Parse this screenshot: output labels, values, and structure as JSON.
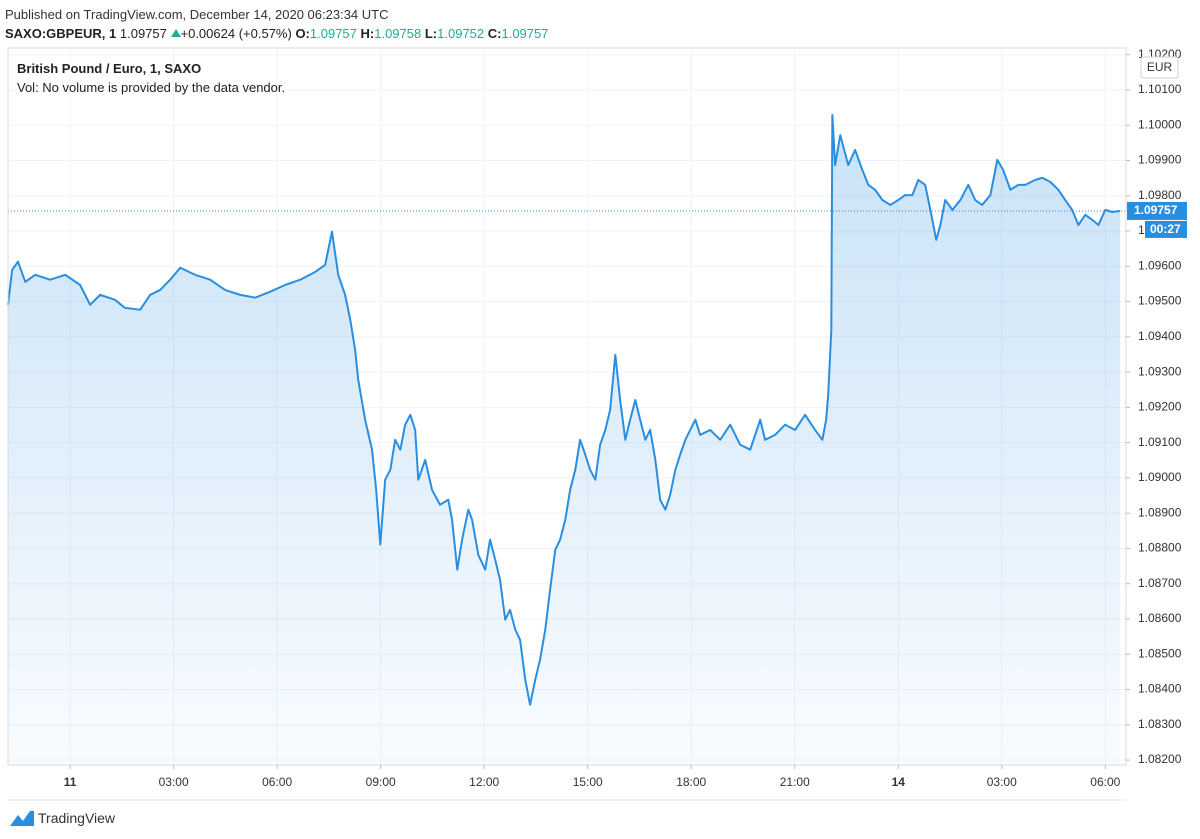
{
  "header": {
    "published": "Published on TradingView.com, December 14, 2020 06:23:34 UTC",
    "symbol": "SAXO:GBPEUR, 1",
    "last": "1.09757",
    "change": "+0.00624 (+0.57%)",
    "open_label": "O:",
    "open": "1.09757",
    "high_label": "H:",
    "high": "1.09758",
    "low_label": "L:",
    "low": "1.09752",
    "close_label": "C:",
    "close": "1.09757"
  },
  "footer": {
    "brand": "TradingView"
  },
  "chart_data": {
    "type": "area",
    "title": "British Pound / Euro, 1, SAXO",
    "subtitle": "Vol: No volume is provided by the data vendor.",
    "currency": "EUR",
    "countdown": "00:27",
    "color": "#2a8ee0",
    "grid": true,
    "x": [
      -1.8,
      -1.68,
      -1.51,
      -1.3,
      -1.01,
      -0.58,
      -0.14,
      0.29,
      0.58,
      0.87,
      1.3,
      1.59,
      2.03,
      2.32,
      2.61,
      2.9,
      3.19,
      3.62,
      4.06,
      4.49,
      4.93,
      5.36,
      5.8,
      6.23,
      6.67,
      7.1,
      7.39,
      7.59,
      7.77,
      7.97,
      8.12,
      8.26,
      8.35,
      8.55,
      8.75,
      8.87,
      8.99,
      9.13,
      9.28,
      9.42,
      9.57,
      9.71,
      9.86,
      10.0,
      10.09,
      10.29,
      10.49,
      10.72,
      10.96,
      11.07,
      11.22,
      11.36,
      11.54,
      11.65,
      11.83,
      12.03,
      12.17,
      12.32,
      12.46,
      12.61,
      12.75,
      12.9,
      13.04,
      13.19,
      13.33,
      13.48,
      13.62,
      13.77,
      13.91,
      14.06,
      14.2,
      14.35,
      14.49,
      14.64,
      14.78,
      14.93,
      15.07,
      15.22,
      15.36,
      15.51,
      15.65,
      15.8,
      15.94,
      16.09,
      16.23,
      16.38,
      16.52,
      16.67,
      16.81,
      16.96,
      17.1,
      17.25,
      17.39,
      17.54,
      17.68,
      17.83,
      17.97,
      18.12,
      18.26,
      18.55,
      18.84,
      19.13,
      19.42,
      19.71,
      20.0,
      20.14,
      20.43,
      20.72,
      21.01,
      21.3,
      21.59,
      21.8,
      21.91,
      21.97,
      22.06,
      22.09,
      22.17,
      22.32,
      22.55,
      22.75,
      22.96,
      23.13,
      23.33,
      23.54,
      23.77,
      24.0,
      24.2,
      24.41,
      24.58,
      24.78,
      24.93,
      25.1,
      25.22,
      25.36,
      25.57,
      25.8,
      26.03,
      26.23,
      26.43,
      26.67,
      26.87,
      27.04,
      27.25,
      27.48,
      27.68,
      27.97,
      28.17,
      28.41,
      28.64,
      28.84,
      29.04,
      29.22,
      29.42,
      29.62,
      29.8,
      30.0,
      30.2,
      30.43
    ],
    "values": [
      1.09491,
      1.0959,
      1.09613,
      1.09556,
      1.09576,
      1.09562,
      1.09576,
      1.09547,
      1.09491,
      1.09519,
      1.09505,
      1.09482,
      1.09477,
      1.09519,
      1.09533,
      1.09562,
      1.09596,
      1.09576,
      1.09562,
      1.09533,
      1.09519,
      1.09511,
      1.09528,
      1.09547,
      1.09562,
      1.09584,
      1.09604,
      1.09698,
      1.09576,
      1.09519,
      1.09448,
      1.09363,
      1.09278,
      1.09165,
      1.0908,
      1.08966,
      1.08811,
      1.08995,
      1.09023,
      1.09108,
      1.0908,
      1.09151,
      1.09179,
      1.09136,
      1.08995,
      1.09051,
      1.08966,
      1.08924,
      1.08938,
      1.08881,
      1.0874,
      1.08825,
      1.0891,
      1.08881,
      1.08782,
      1.0874,
      1.08825,
      1.08768,
      1.08711,
      1.08598,
      1.08626,
      1.0857,
      1.08541,
      1.08428,
      1.08357,
      1.08428,
      1.08485,
      1.0857,
      1.08683,
      1.08796,
      1.08825,
      1.08881,
      1.08966,
      1.09023,
      1.09108,
      1.09066,
      1.09023,
      1.08995,
      1.09094,
      1.09136,
      1.09193,
      1.09349,
      1.09221,
      1.09108,
      1.09165,
      1.09221,
      1.09165,
      1.09108,
      1.09136,
      1.09051,
      1.08938,
      1.0891,
      1.08952,
      1.09023,
      1.09066,
      1.09108,
      1.09136,
      1.09165,
      1.09122,
      1.09136,
      1.09108,
      1.09151,
      1.09094,
      1.0908,
      1.09165,
      1.09108,
      1.09122,
      1.09151,
      1.09136,
      1.09179,
      1.09136,
      1.09108,
      1.09165,
      1.09236,
      1.0942,
      1.10029,
      1.09887,
      1.09972,
      1.09887,
      1.0993,
      1.09873,
      1.09831,
      1.09817,
      1.09788,
      1.09774,
      1.09788,
      1.09802,
      1.09802,
      1.09845,
      1.09831,
      1.0976,
      1.09675,
      1.09717,
      1.09788,
      1.0976,
      1.09788,
      1.09831,
      1.09788,
      1.09774,
      1.09802,
      1.09902,
      1.09873,
      1.09817,
      1.09831,
      1.09831,
      1.09845,
      1.09851,
      1.09839,
      1.09817,
      1.09788,
      1.0976,
      1.09717,
      1.09746,
      1.09732,
      1.09717,
      1.0976,
      1.09754,
      1.09757
    ],
    "xlim": [
      -1.8,
      30.6
    ],
    "xticks": [
      {
        "value": 0,
        "label": "11"
      },
      {
        "value": 3,
        "label": "03:00"
      },
      {
        "value": 6,
        "label": "06:00"
      },
      {
        "value": 9,
        "label": "09:00"
      },
      {
        "value": 12,
        "label": "12:00"
      },
      {
        "value": 15,
        "label": "15:00"
      },
      {
        "value": 18,
        "label": "18:00"
      },
      {
        "value": 21,
        "label": "21:00"
      },
      {
        "value": 24,
        "label": "14"
      },
      {
        "value": 27,
        "label": "03:00"
      },
      {
        "value": 30,
        "label": "06:00"
      }
    ],
    "ylim": [
      1.08186,
      1.10219
    ],
    "yticks": [
      {
        "value": 1.082,
        "label": "1.08200"
      },
      {
        "value": 1.083,
        "label": "1.08300"
      },
      {
        "value": 1.084,
        "label": "1.08400"
      },
      {
        "value": 1.085,
        "label": "1.08500"
      },
      {
        "value": 1.086,
        "label": "1.08600"
      },
      {
        "value": 1.087,
        "label": "1.08700"
      },
      {
        "value": 1.088,
        "label": "1.08800"
      },
      {
        "value": 1.089,
        "label": "1.08900"
      },
      {
        "value": 1.09,
        "label": "1.09000"
      },
      {
        "value": 1.091,
        "label": "1.09100"
      },
      {
        "value": 1.092,
        "label": "1.09200"
      },
      {
        "value": 1.093,
        "label": "1.09300"
      },
      {
        "value": 1.094,
        "label": "1.09400"
      },
      {
        "value": 1.095,
        "label": "1.09500"
      },
      {
        "value": 1.096,
        "label": "1.09600"
      },
      {
        "value": 1.097,
        "label": "1.09700"
      },
      {
        "value": 1.098,
        "label": "1.09800"
      },
      {
        "value": 1.099,
        "label": "1.09900"
      },
      {
        "value": 1.1,
        "label": "1.10000"
      },
      {
        "value": 1.101,
        "label": "1.10100"
      },
      {
        "value": 1.102,
        "label": "1.10200"
      }
    ]
  }
}
